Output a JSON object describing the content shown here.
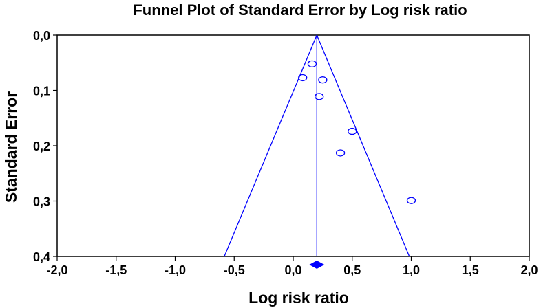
{
  "chart_data": {
    "type": "scatter",
    "title": "Funnel Plot of Standard Error by Log risk ratio",
    "xlabel": "Log risk ratio",
    "ylabel": "Standard Error",
    "xlim": [
      -2.0,
      2.0
    ],
    "ylim": [
      0.0,
      0.4
    ],
    "y_inverted": true,
    "x_ticks": [
      "-2,0",
      "-1,5",
      "-1,0",
      "-0,5",
      "0,0",
      "0,5",
      "1,0",
      "1,5",
      "2,0"
    ],
    "x_tick_values": [
      -2.0,
      -1.5,
      -1.0,
      -0.5,
      0.0,
      0.5,
      1.0,
      1.5,
      2.0
    ],
    "y_ticks": [
      "0,0",
      "0,1",
      "0,2",
      "0,3",
      "0,4"
    ],
    "y_tick_values": [
      0.0,
      0.1,
      0.2,
      0.3,
      0.4
    ],
    "grid": false,
    "pooled_estimate": 0.2,
    "funnel_limits_at_max_se": [
      -0.584,
      0.984
    ],
    "points": [
      {
        "x": 0.16,
        "y": 0.052
      },
      {
        "x": 0.08,
        "y": 0.077
      },
      {
        "x": 0.25,
        "y": 0.081
      },
      {
        "x": 0.22,
        "y": 0.111
      },
      {
        "x": 0.5,
        "y": 0.174
      },
      {
        "x": 0.4,
        "y": 0.213
      },
      {
        "x": 1.0,
        "y": 0.299
      }
    ],
    "colors": {
      "marker": "#0000ff",
      "lines": "#0000ff",
      "axes": "#000000",
      "background": "#ffffff"
    }
  }
}
